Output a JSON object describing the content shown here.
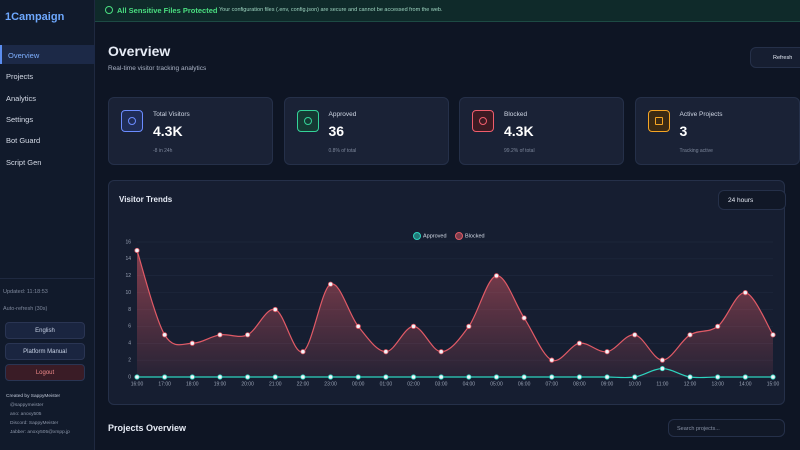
{
  "sidebar": {
    "brand": "1Campaign",
    "nav": [
      "Overview",
      "Projects",
      "Analytics",
      "Settings",
      "Bot Guard",
      "Script Gen"
    ],
    "status": [
      "Updated: 11:18:53",
      "Auto-refresh (30s)"
    ],
    "language": "English",
    "manual": "Platform Manual",
    "logout": "Logout",
    "credits": [
      "Created by SappyMeister",
      "@sappymeister",
      "ano: anoxy505",
      "Discord: SappyMeister",
      "Jabber: anoxy505@xmpp.jp"
    ]
  },
  "banner": {
    "title": "All Sensitive Files Protected",
    "message": "Your configuration files (.env, config.json) are secure and cannot be accessed from the web."
  },
  "header": {
    "title": "Overview",
    "subtitle": "Real-time visitor tracking analytics",
    "refresh": "Refresh"
  },
  "cards": [
    {
      "label": "Total Visitors",
      "value": "4.3K",
      "note": "-8 in 24h"
    },
    {
      "label": "Approved",
      "value": "36",
      "note": "0.8% of total"
    },
    {
      "label": "Blocked",
      "value": "4.3K",
      "note": "99.2% of total"
    },
    {
      "label": "Active Projects",
      "value": "3",
      "note": "Tracking active"
    }
  ],
  "trend_panel": {
    "range": "24 hours"
  },
  "chart_data": {
    "type": "line",
    "title": "Visitor Trends",
    "categories": [
      "16:00",
      "17:00",
      "18:00",
      "19:00",
      "20:00",
      "21:00",
      "22:00",
      "23:00",
      "00:00",
      "01:00",
      "02:00",
      "03:00",
      "04:00",
      "05:00",
      "06:00",
      "07:00",
      "08:00",
      "09:00",
      "10:00",
      "11:00",
      "12:00",
      "13:00",
      "14:00",
      "15:00"
    ],
    "series": [
      {
        "name": "Approved",
        "color": "#2dd4bf",
        "values": [
          0,
          0,
          0,
          0,
          0,
          0,
          0,
          0,
          0,
          0,
          0,
          0,
          0,
          0,
          0,
          0,
          0,
          0,
          0,
          1,
          0,
          0,
          0,
          0
        ]
      },
      {
        "name": "Blocked",
        "color": "#e05a66",
        "values": [
          15,
          5,
          4,
          5,
          5,
          8,
          3,
          11,
          6,
          3,
          6,
          3,
          6,
          12,
          7,
          2,
          4,
          3,
          5,
          2,
          5,
          6,
          10,
          5
        ]
      }
    ],
    "ylim": [
      0,
      16
    ],
    "yticks": [
      0,
      2,
      4,
      6,
      8,
      10,
      12,
      14,
      16
    ],
    "grid": true
  },
  "projects": {
    "title": "Projects Overview",
    "search": "Search projects..."
  }
}
